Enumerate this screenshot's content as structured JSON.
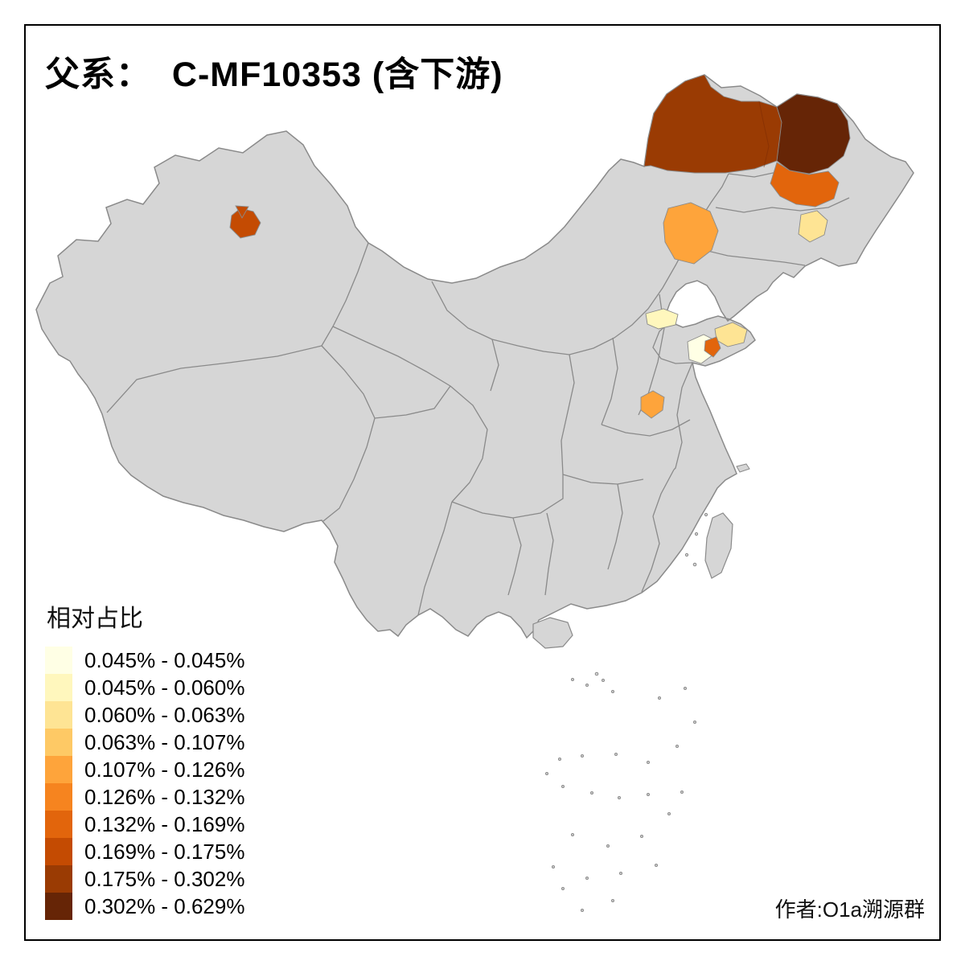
{
  "title": "父系：  C-MF10353 (含下游)",
  "attribution": "作者:O1a溯源群",
  "legend": {
    "title": "相对占比",
    "entries": [
      {
        "label": "0.045% - 0.045%",
        "color": "#FFFFE5"
      },
      {
        "label": "0.045% - 0.060%",
        "color": "#FFF7BD"
      },
      {
        "label": "0.060% - 0.063%",
        "color": "#FEE494"
      },
      {
        "label": "0.063% - 0.107%",
        "color": "#FEC965"
      },
      {
        "label": "0.107% - 0.126%",
        "color": "#FEA43B"
      },
      {
        "label": "0.126% - 0.132%",
        "color": "#F6841F"
      },
      {
        "label": "0.132% - 0.169%",
        "color": "#E2650C"
      },
      {
        "label": "0.169% - 0.175%",
        "color": "#C44B02"
      },
      {
        "label": "0.175% - 0.302%",
        "color": "#9A3B03"
      },
      {
        "label": "0.302% - 0.629%",
        "color": "#662506"
      }
    ]
  },
  "map": {
    "land_color": "#D6D6D6",
    "border_color": "#8A8A8A",
    "regions": [
      {
        "id": "inner-mongolia-northeast",
        "color": "#9A3B03",
        "value_range": "0.175% - 0.302%"
      },
      {
        "id": "heilongjiang-north",
        "color": "#662506",
        "value_range": "0.302% - 0.629%"
      },
      {
        "id": "jilin-west",
        "color": "#E2650C",
        "value_range": "0.132% - 0.169%"
      },
      {
        "id": "jilin-east",
        "color": "#FEE494",
        "value_range": "0.060% - 0.063%"
      },
      {
        "id": "beijing-hebei",
        "color": "#FEA43B",
        "value_range": "0.107% - 0.126%"
      },
      {
        "id": "hebei-small",
        "color": "#FFF7BD",
        "value_range": "0.045% - 0.060%"
      },
      {
        "id": "shandong-west",
        "color": "#FFFFE5",
        "value_range": "0.045% - 0.045%"
      },
      {
        "id": "shandong-northeast",
        "color": "#FEE494",
        "value_range": "0.060% - 0.063%"
      },
      {
        "id": "shandong-center",
        "color": "#E2650C",
        "value_range": "0.132% - 0.169%"
      },
      {
        "id": "henan-north",
        "color": "#FEA43B",
        "value_range": "0.107% - 0.126%"
      },
      {
        "id": "xinjiang-central",
        "color": "#C44B02",
        "value_range": "0.169% - 0.175%"
      }
    ]
  }
}
